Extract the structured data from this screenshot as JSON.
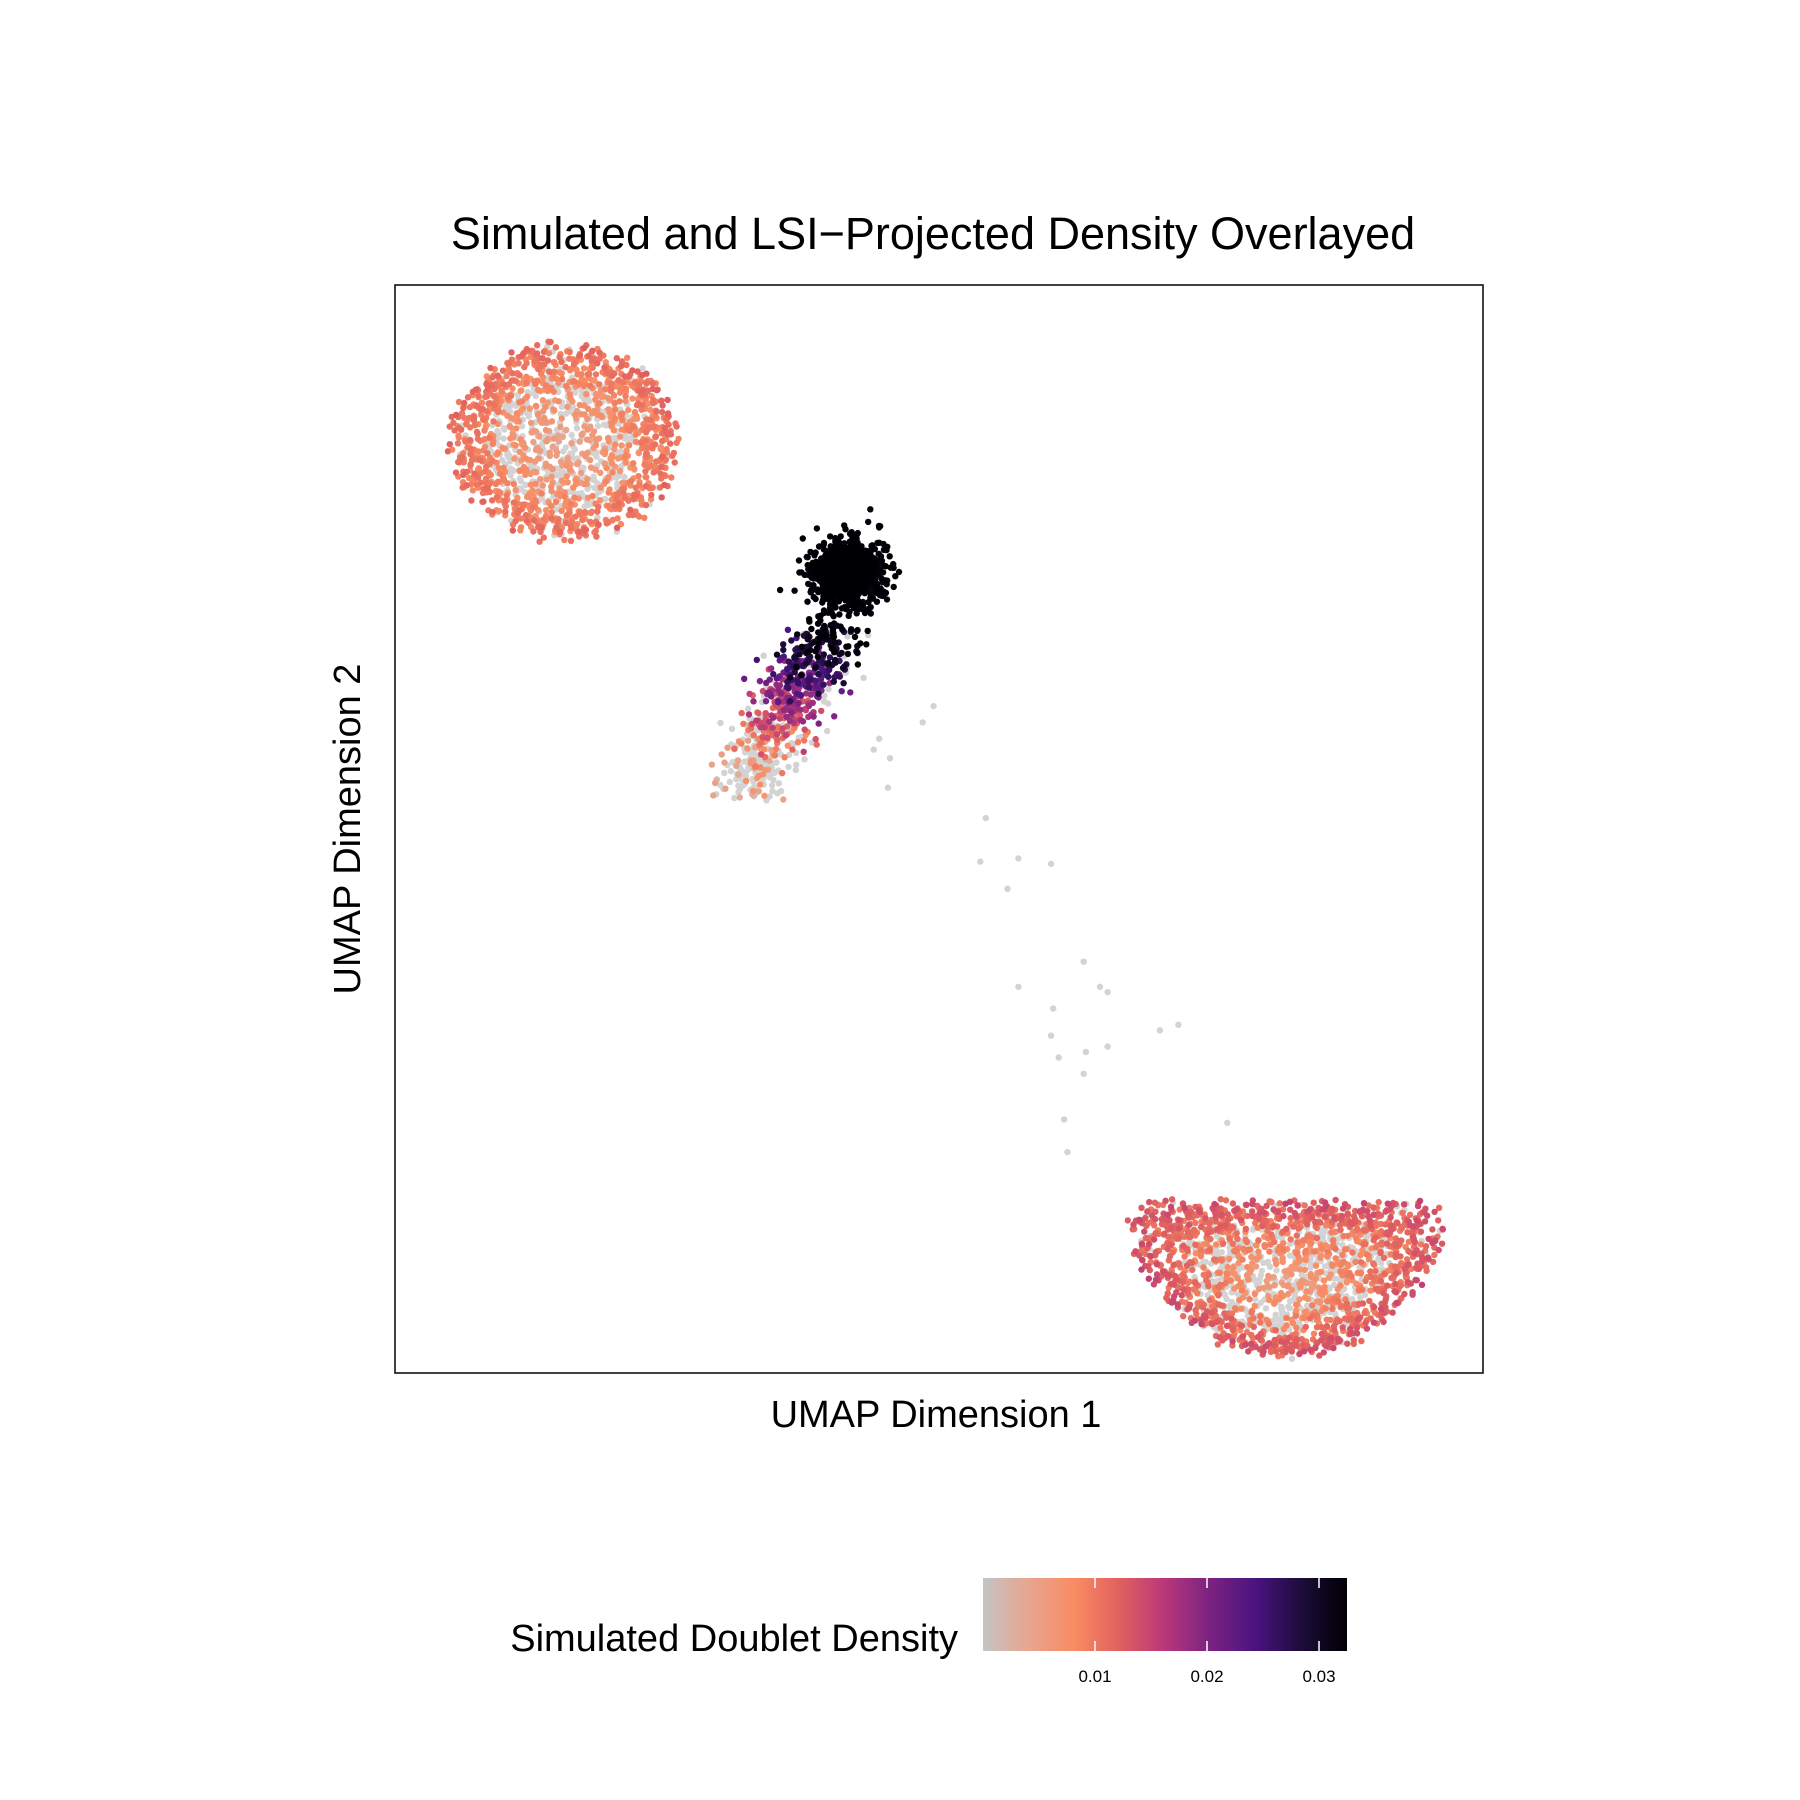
{
  "chart_data": {
    "type": "scatter",
    "title": "Simulated and LSI−Projected Density Overlayed",
    "xlabel": "UMAP Dimension 1",
    "ylabel": "UMAP Dimension 2",
    "xlim": [
      0,
      100
    ],
    "ylim": [
      0,
      100
    ],
    "grid": false,
    "x_ticks_shown": false,
    "y_ticks_shown": false,
    "legend": {
      "title": "Simulated Doublet Density",
      "placement": "bottom",
      "range": [
        0,
        0.0325
      ],
      "ticks": [
        {
          "value": 0.01,
          "label": "0.01"
        },
        {
          "value": 0.02,
          "label": "0.02"
        },
        {
          "value": 0.03,
          "label": "0.03"
        }
      ],
      "colors": [
        "#c4c4c4",
        "#e8a58f",
        "#f98c63",
        "#e0605f",
        "#b8377a",
        "#7a2282",
        "#4a1380",
        "#1c0c3a",
        "#000004"
      ]
    },
    "colors": {
      "unassigned_point": "#d3d3d3"
    },
    "clusters": [
      {
        "name": "top-left",
        "shape": "ring",
        "center": [
          15.5,
          85.5
        ],
        "radius": [
          11,
          9.5
        ],
        "approx_points": 1600,
        "density_core": 0.0,
        "density_ring": 0.009,
        "x_range": [
          3.5,
          27.5
        ],
        "y_range": [
          77,
          97
        ]
      },
      {
        "name": "central-dense",
        "shape": "blob",
        "center": [
          41.5,
          73.5
        ],
        "radius": [
          3.5,
          3.5
        ],
        "approx_points": 900,
        "density": 0.033,
        "x_range": [
          36,
          45
        ],
        "y_range": [
          70,
          79
        ]
      },
      {
        "name": "bridge",
        "shape": "streak",
        "x_range": [
          28.5,
          40.5
        ],
        "y_range": [
          53.5,
          68.5
        ],
        "approx_points": 700,
        "density_range": [
          0.0,
          0.024
        ]
      },
      {
        "name": "bottom-right",
        "shape": "crescent",
        "center": [
          82,
          10.5
        ],
        "radius": [
          15,
          7.5
        ],
        "approx_points": 2000,
        "density_core": 0.0,
        "density_ring": 0.011,
        "x_range": [
          64,
          96
        ],
        "y_range": [
          3,
          27
        ]
      },
      {
        "name": "scattered",
        "shape": "sparse",
        "approx_points": 26,
        "points": [
          [
            49.5,
            61.3
          ],
          [
            44.5,
            58.3
          ],
          [
            45.5,
            56.5
          ],
          [
            45.3,
            53.8
          ],
          [
            54.3,
            51.0
          ],
          [
            53.8,
            47.0
          ],
          [
            57.3,
            47.3
          ],
          [
            60.3,
            46.8
          ],
          [
            56.3,
            44.5
          ],
          [
            63.3,
            37.8
          ],
          [
            57.3,
            35.5
          ],
          [
            64.8,
            35.5
          ],
          [
            65.5,
            35.0
          ],
          [
            60.5,
            33.5
          ],
          [
            60.3,
            31.0
          ],
          [
            70.3,
            31.5
          ],
          [
            72.0,
            32.0
          ],
          [
            65.5,
            30.0
          ],
          [
            61.0,
            29.0
          ],
          [
            63.5,
            29.5
          ],
          [
            63.3,
            27.5
          ],
          [
            61.5,
            23.3
          ],
          [
            61.8,
            20.3
          ],
          [
            76.5,
            23.0
          ],
          [
            48.5,
            59.8
          ],
          [
            44.0,
            57.3
          ]
        ]
      }
    ]
  }
}
